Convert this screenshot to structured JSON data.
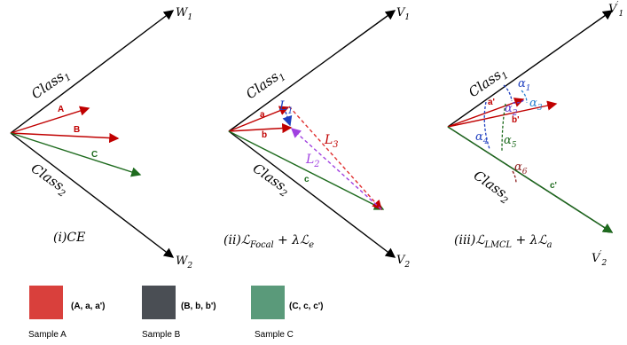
{
  "panels": [
    {
      "axis_top": {
        "base": "W",
        "sub": "1"
      },
      "axis_bottom": {
        "base": "W",
        "sub": "2"
      },
      "class_top": {
        "base": "Class",
        "sub": "1"
      },
      "class_bottom": {
        "base": "Class",
        "sub": "2"
      },
      "vectors": [
        "A",
        "B",
        "C"
      ],
      "caption": {
        "base": "(i)CE"
      }
    },
    {
      "axis_top": {
        "base": "V",
        "sub": "1"
      },
      "axis_bottom": {
        "base": "V",
        "sub": "2"
      },
      "class_top": {
        "base": "Class",
        "sub": "1"
      },
      "class_bottom": {
        "base": "Class",
        "sub": "2"
      },
      "vectors": [
        "a",
        "b",
        "c"
      ],
      "losses": [
        {
          "base": "L",
          "sub": "1"
        },
        {
          "base": "L",
          "sub": "3"
        },
        {
          "base": "L",
          "sub": "2"
        }
      ],
      "caption": {
        "base": "(ii)ℒ",
        "sub": "Focal",
        "base2": " + λℒ",
        "sub2": "e"
      }
    },
    {
      "axis_top": {
        "base": "V",
        "sup": "′",
        "sub": "1"
      },
      "axis_bottom": {
        "base": "V",
        "sup": "′",
        "sub": "2"
      },
      "class_top": {
        "base": "Class",
        "sub": "1"
      },
      "class_bottom": {
        "base": "Class",
        "sub": "2"
      },
      "vectors": [
        "a'",
        "b'",
        "c'"
      ],
      "angles": [
        {
          "base": "α",
          "sub": "1"
        },
        {
          "base": "α",
          "sub": "2"
        },
        {
          "base": "α",
          "sub": "3"
        },
        {
          "base": "α",
          "sub": "4"
        },
        {
          "base": "α",
          "sub": "5"
        },
        {
          "base": "α",
          "sub": "6"
        }
      ],
      "caption": {
        "base": "(iii)ℒ",
        "sub": "LMCL",
        "base2": " + λℒ",
        "sub2": "a"
      }
    }
  ],
  "samples": [
    {
      "label": "Sample A",
      "tuple": "(A, a, a')"
    },
    {
      "label": "Sample B",
      "tuple": "(B, b, b')"
    },
    {
      "label": "Sample C",
      "tuple": "(C, c, c')"
    }
  ]
}
